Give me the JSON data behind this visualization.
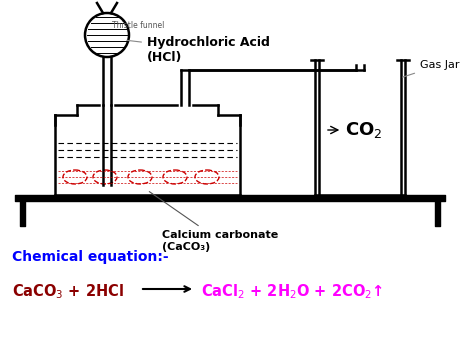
{
  "bg_color": "#ffffff",
  "line_color": "#000000",
  "red_color": "#cc0000",
  "blue_color": "#0000ff",
  "magenta_color": "#ff00ff",
  "dark_red_color": "#8b0000",
  "label_hcl": "Hydrochloric Acid\n(HCl)",
  "label_thistle": "Thistle funnel",
  "label_caco3": "Calcium carbonate\n(CaCO₃)",
  "label_co2": "CO$_2$",
  "label_gasjar": "Gas Jar",
  "chem_eq_label": "Chemical equation:-",
  "chem_reactants": "CaCO$_3$ + 2HCl",
  "chem_products": "CaCl$_2$ + 2H$_2$O + 2CO$_2$↑"
}
